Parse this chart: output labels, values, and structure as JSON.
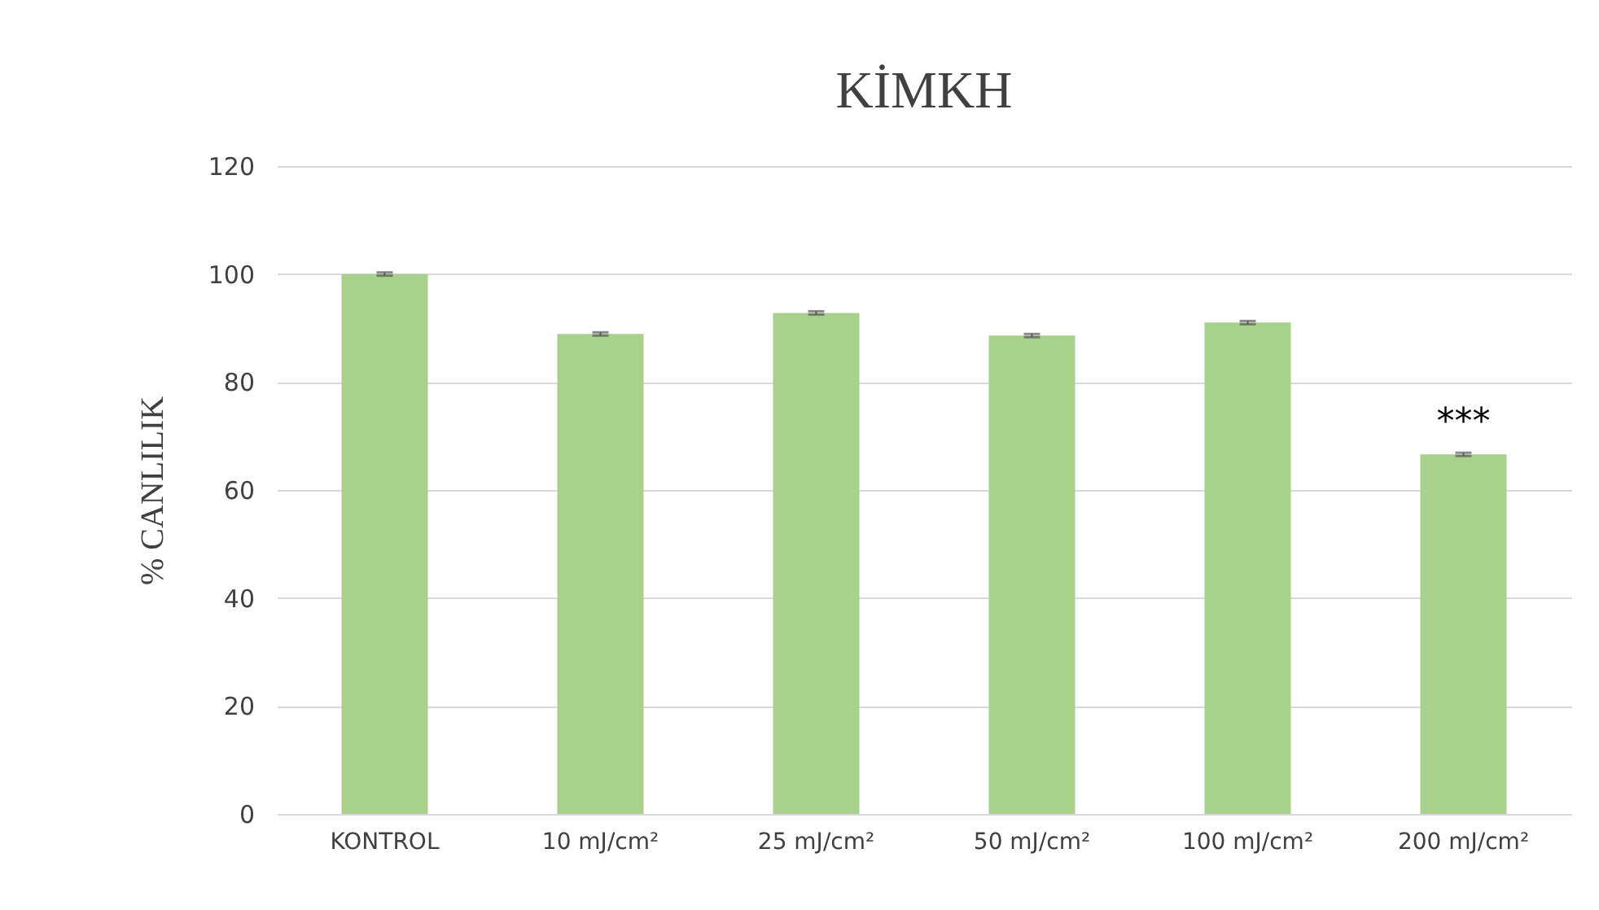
{
  "chart_data": {
    "type": "bar",
    "title": "KİMKH",
    "ylabel": "% CANLILIK",
    "categories": [
      "KONTROL",
      "10 mJ/cm²",
      "25 mJ/cm²",
      "50 mJ/cm²",
      "100 mJ/cm²",
      "200 mJ/cm²"
    ],
    "values": [
      100,
      88.9,
      92.8,
      88.6,
      91.0,
      66.6
    ],
    "errors": [
      0.3,
      0.3,
      0.3,
      0.3,
      0.3,
      0.3
    ],
    "color": "#a9d18e",
    "ylim": [
      0,
      120
    ],
    "yticks": [
      0,
      20,
      40,
      60,
      80,
      100,
      120
    ],
    "grid": "y",
    "annotations": [
      {
        "text": "***",
        "x": "200 mJ/cm²",
        "y": 66.6
      }
    ]
  }
}
